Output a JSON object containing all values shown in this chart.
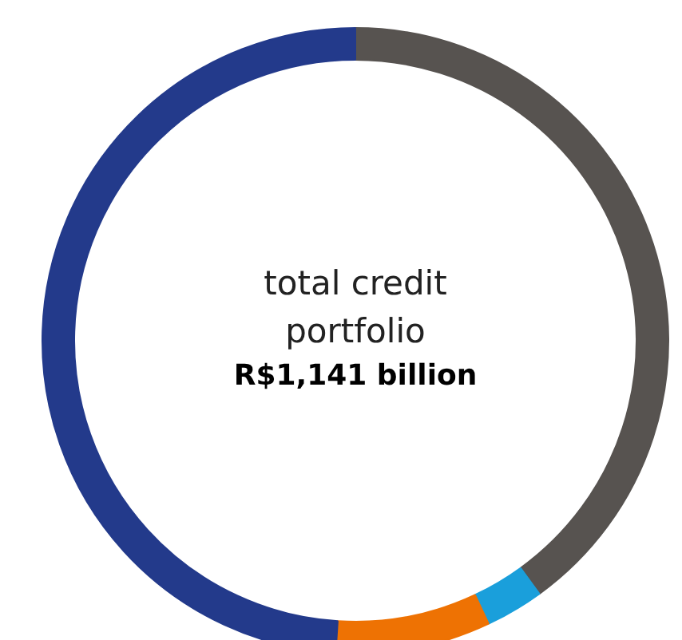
{
  "chart_data": {
    "type": "donut",
    "title": "total credit portfolio",
    "annotations": [
      "R$1,141 billion"
    ],
    "categories": [
      null,
      null,
      null,
      null
    ],
    "values": [
      40,
      3,
      8,
      49
    ],
    "colors": [
      "#575350",
      "#1a9fdb",
      "#ee7203",
      "#233a8b"
    ],
    "legend": false
  }
}
